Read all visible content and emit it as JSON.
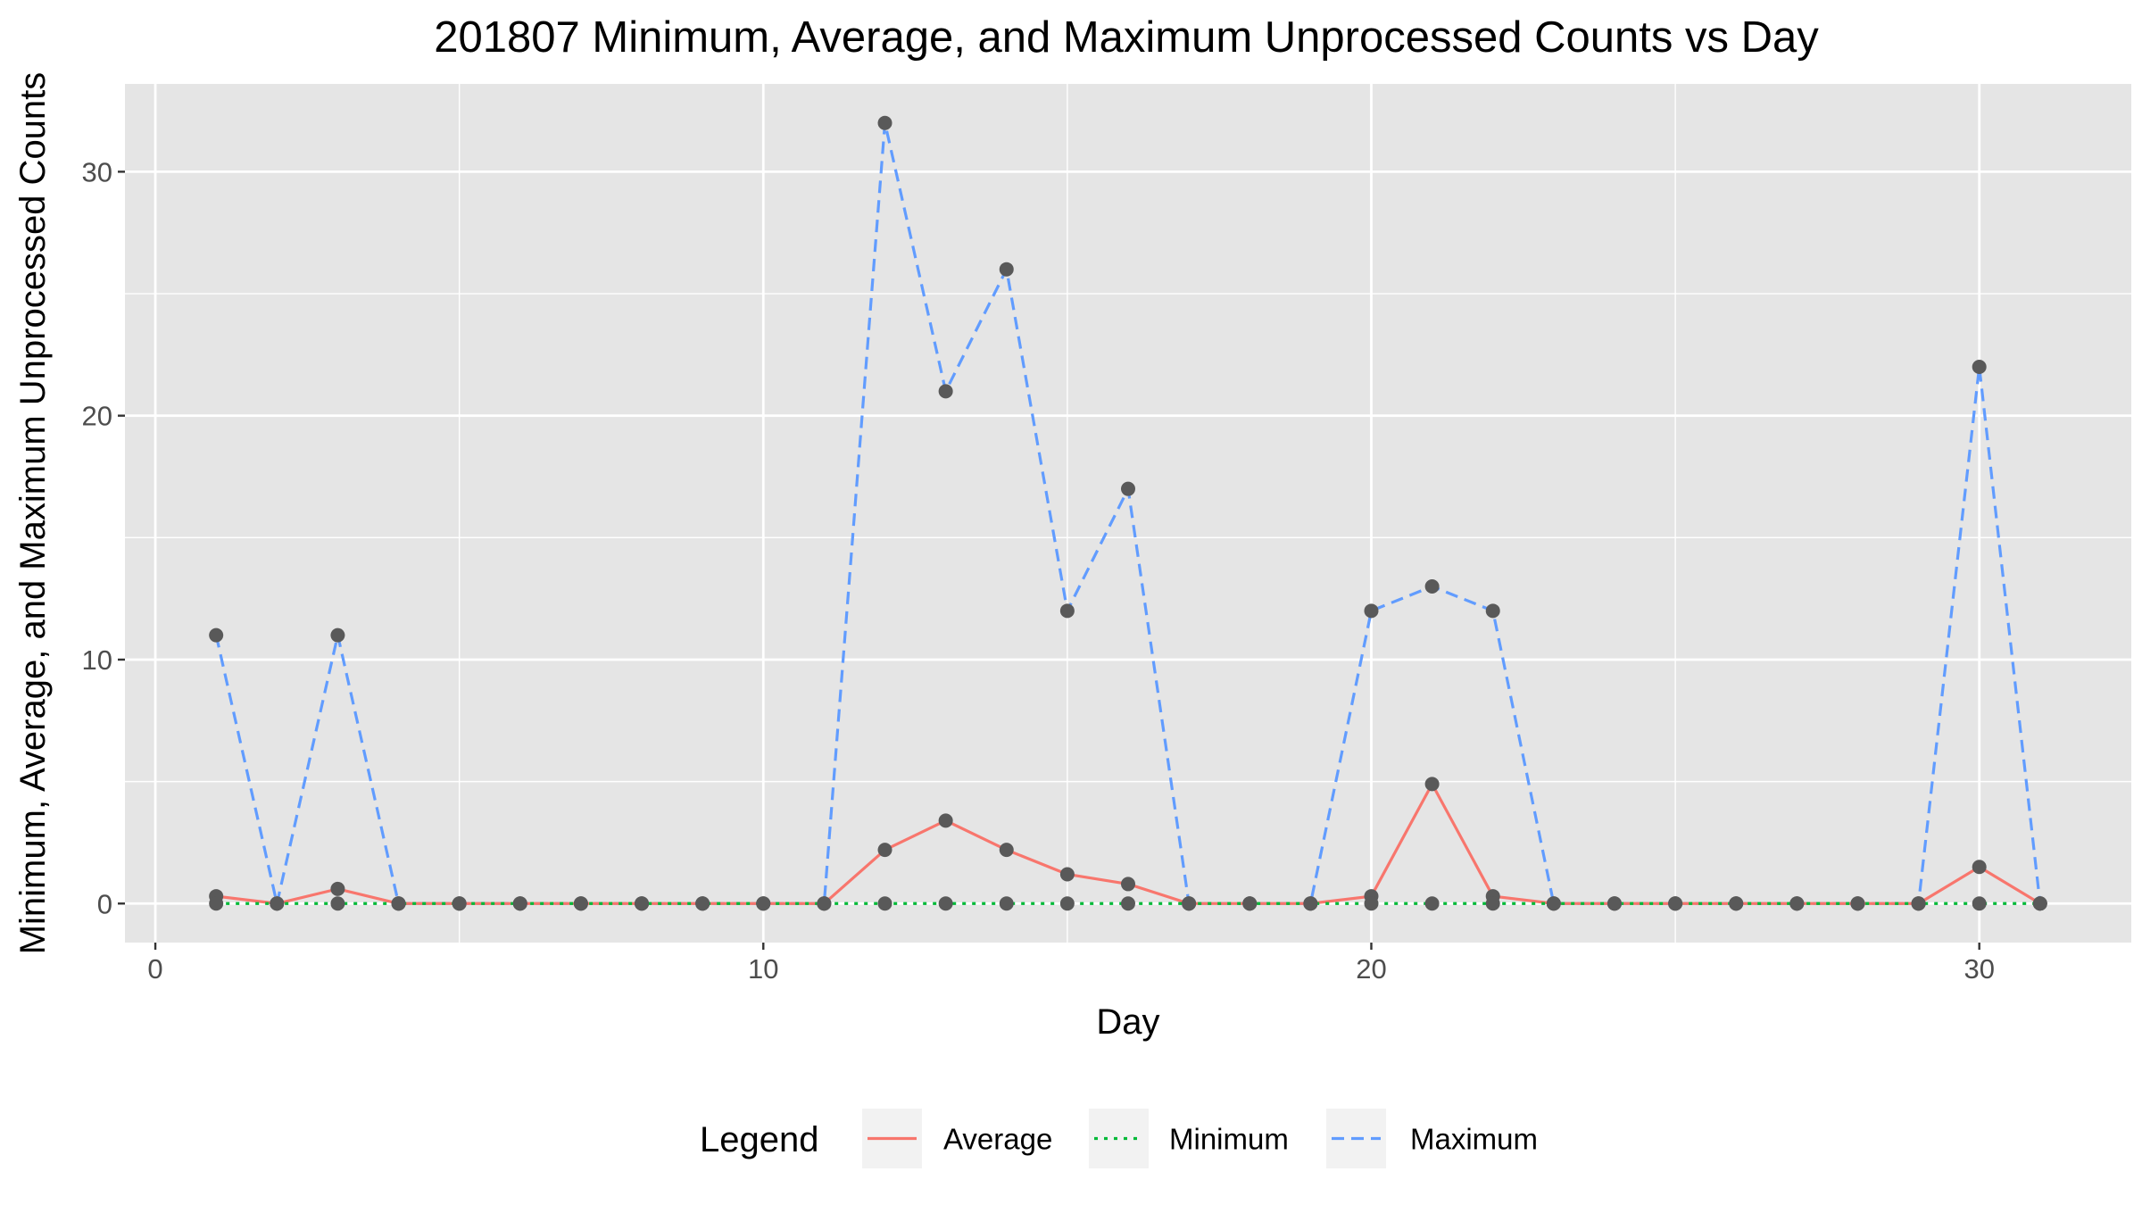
{
  "chart_data": {
    "type": "line",
    "title": "201807 Minimum, Average, and Maximum Unprocessed Counts vs Day",
    "xlabel": "Day",
    "ylabel": "Minimum, Average, and Maximum Unprocessed Counts",
    "xlim": [
      -0.5,
      32.5
    ],
    "ylim": [
      -1.6,
      33.6
    ],
    "x_ticks": [
      0,
      10,
      20,
      30
    ],
    "y_ticks": [
      0,
      10,
      20,
      30
    ],
    "x_minor": [
      5,
      15,
      25
    ],
    "y_minor": [
      5,
      15,
      25
    ],
    "grid": true,
    "legend_position": "bottom",
    "legend_title": "Legend",
    "x": [
      1,
      2,
      3,
      4,
      5,
      6,
      7,
      8,
      9,
      10,
      11,
      12,
      13,
      14,
      15,
      16,
      17,
      18,
      19,
      20,
      21,
      22,
      23,
      24,
      25,
      26,
      27,
      28,
      29,
      30,
      31
    ],
    "series": [
      {
        "name": "Average",
        "color": "#F8766D",
        "dash": "solid",
        "values": [
          0.3,
          0,
          0.6,
          0,
          0,
          0,
          0,
          0,
          0,
          0,
          0,
          2.2,
          3.4,
          2.2,
          1.2,
          0.8,
          0,
          0,
          0,
          0.3,
          4.9,
          0.3,
          0,
          0,
          0,
          0,
          0,
          0,
          0,
          1.5,
          0
        ]
      },
      {
        "name": "Minimum",
        "color": "#00BA38",
        "dash": "dotted",
        "values": [
          0,
          0,
          0,
          0,
          0,
          0,
          0,
          0,
          0,
          0,
          0,
          0,
          0,
          0,
          0,
          0,
          0,
          0,
          0,
          0,
          0,
          0,
          0,
          0,
          0,
          0,
          0,
          0,
          0,
          0,
          0
        ]
      },
      {
        "name": "Maximum",
        "color": "#619CFF",
        "dash": "dashed",
        "values": [
          11,
          0,
          11,
          0,
          0,
          0,
          0,
          0,
          0,
          0,
          0,
          32,
          21,
          26,
          12,
          17,
          0,
          0,
          0,
          12,
          13,
          12,
          0,
          0,
          0,
          0,
          0,
          0,
          0,
          22,
          0
        ]
      }
    ],
    "point_color": "#595959",
    "panel_background": "#E5E5E5",
    "grid_color": "#FFFFFF"
  }
}
